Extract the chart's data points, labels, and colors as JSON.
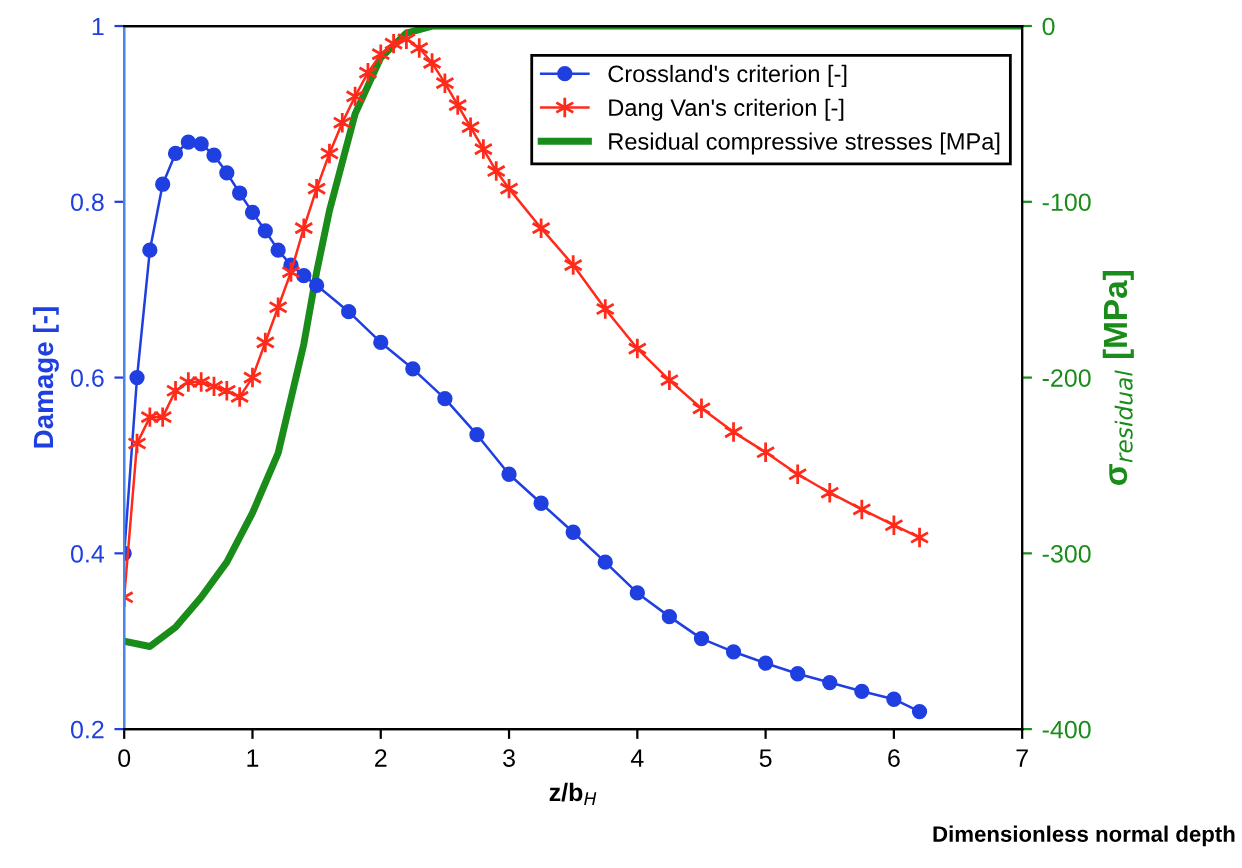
{
  "chart_data": {
    "type": "line",
    "xlabel": "z/b$_{H}$",
    "ylabel": "Damage [-]",
    "y2label": "σ$_{residual}$ [MPa]",
    "annotations": [
      "Dimensionless normal depth"
    ],
    "xlim": [
      0,
      7
    ],
    "xticks": [
      0,
      1,
      2,
      3,
      4,
      5,
      6,
      7
    ],
    "ylim": [
      0.2,
      1
    ],
    "yticks": [
      0.2,
      0.4,
      0.6,
      0.8,
      {
        "value": 1,
        "label": "1"
      }
    ],
    "y2lim": [
      -400,
      0
    ],
    "y2ticks": [
      {
        "value": -400,
        "label": "-400"
      },
      {
        "value": -300,
        "label": "-300"
      },
      {
        "value": -200,
        "label": "-200"
      },
      {
        "value": -100,
        "label": "-100"
      },
      0
    ],
    "grid": false,
    "legend": "top right",
    "line_style": "solid",
    "series": [
      {
        "name": "Crossland's criterion [-]",
        "color": "#1f3fe0",
        "marker": "circle",
        "x": [
          0,
          0.1,
          0.2,
          0.3,
          0.4,
          0.5,
          0.6,
          0.7,
          0.8,
          0.9,
          1.0,
          1.1,
          1.2,
          1.3,
          1.4,
          1.5,
          1.75,
          2.0,
          2.25,
          2.5,
          2.75,
          3.0,
          3.25,
          3.5,
          3.75,
          4.0,
          4.25,
          4.5,
          4.75,
          5.0,
          5.25,
          5.5,
          5.75,
          6.0,
          6.2
        ],
        "values": [
          0.4,
          0.6,
          0.745,
          0.82,
          0.855,
          0.868,
          0.866,
          0.853,
          0.833,
          0.81,
          0.788,
          0.767,
          0.745,
          0.728,
          0.716,
          0.705,
          0.675,
          0.64,
          0.61,
          0.576,
          0.535,
          0.49,
          0.457,
          0.424,
          0.39,
          0.355,
          0.328,
          0.303,
          0.288,
          0.275,
          0.263,
          0.253,
          0.243,
          0.234,
          0.22
        ]
      },
      {
        "name": "Dang Van's criterion [-]",
        "color": "#ff2a1a",
        "marker": "cross",
        "x": [
          0,
          0.1,
          0.2,
          0.3,
          0.4,
          0.5,
          0.6,
          0.7,
          0.8,
          0.9,
          1.0,
          1.1,
          1.2,
          1.3,
          1.4,
          1.5,
          1.6,
          1.7,
          1.8,
          1.9,
          2.0,
          2.1,
          2.2,
          2.3,
          2.4,
          2.5,
          2.6,
          2.7,
          2.8,
          2.9,
          3.0,
          3.25,
          3.5,
          3.75,
          4.0,
          4.25,
          4.5,
          4.75,
          5.0,
          5.25,
          5.5,
          5.75,
          6.0,
          6.2
        ],
        "values": [
          0.35,
          0.525,
          0.555,
          0.555,
          0.585,
          0.595,
          0.595,
          0.59,
          0.585,
          0.578,
          0.6,
          0.64,
          0.68,
          0.72,
          0.77,
          0.815,
          0.855,
          0.89,
          0.92,
          0.947,
          0.968,
          0.98,
          0.985,
          0.975,
          0.958,
          0.935,
          0.91,
          0.885,
          0.86,
          0.835,
          0.815,
          0.77,
          0.728,
          0.678,
          0.633,
          0.597,
          0.565,
          0.538,
          0.515,
          0.49,
          0.469,
          0.45,
          0.432,
          0.418
        ]
      },
      {
        "name": "Residual compressive stresses [MPa]",
        "color": "#1a8c1a",
        "marker": "none",
        "axis": "y2",
        "x": [
          0,
          0.2,
          0.4,
          0.6,
          0.8,
          1.0,
          1.2,
          1.4,
          1.5,
          1.6,
          1.8,
          2.0,
          2.2,
          2.4,
          7.0
        ],
        "values": [
          -350,
          -353,
          -342,
          -325,
          -305,
          -277,
          -243,
          -181,
          -140,
          -105,
          -50,
          -18,
          -4,
          0,
          0
        ]
      }
    ]
  }
}
